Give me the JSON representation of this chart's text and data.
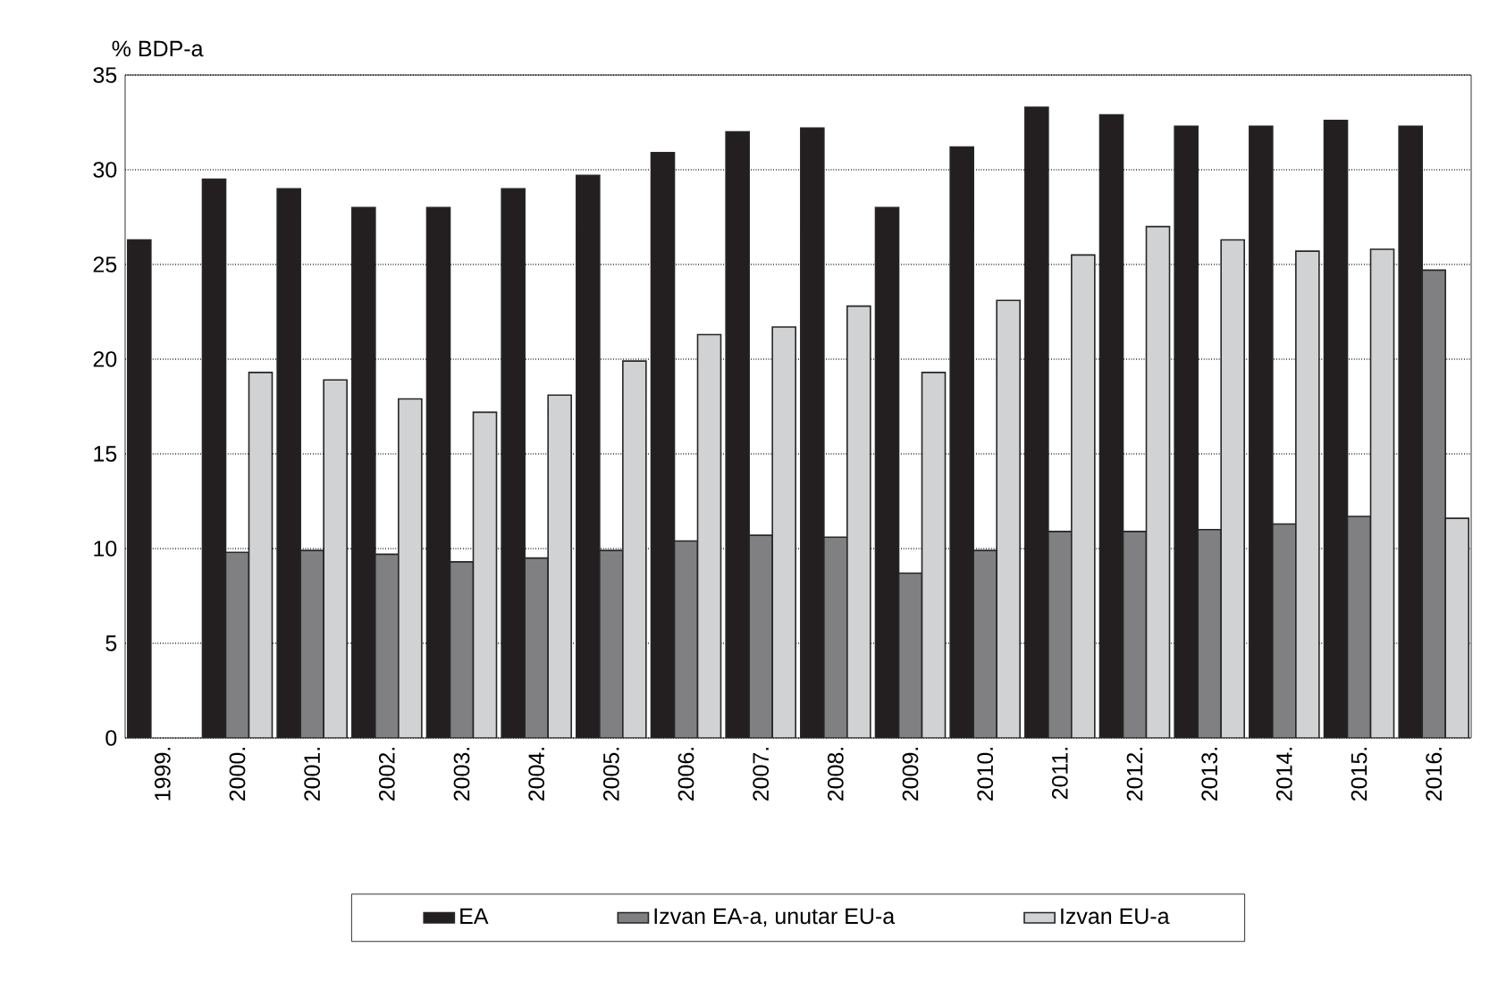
{
  "chart_data": {
    "type": "bar",
    "ylabel": "% BDP-a",
    "categories": [
      "1999.",
      "2000.",
      "2001.",
      "2002.",
      "2003.",
      "2004.",
      "2005.",
      "2006.",
      "2007.",
      "2008.",
      "2009.",
      "2010.",
      "2011.",
      "2012.",
      "2013.",
      "2014.",
      "2015.",
      "2016."
    ],
    "series": [
      {
        "name": "EA",
        "color": "#231f20",
        "values": [
          26.3,
          29.5,
          29.0,
          28.0,
          28.0,
          29.0,
          29.7,
          30.9,
          32.0,
          32.2,
          28.0,
          31.2,
          33.3,
          32.9,
          32.3,
          32.3,
          32.6,
          32.3
        ]
      },
      {
        "name": "Izvan EA-a, unutar EU-a",
        "color": "#808083",
        "values": [
          null,
          9.8,
          9.9,
          9.7,
          9.3,
          9.5,
          9.9,
          10.4,
          10.7,
          10.6,
          8.7,
          9.9,
          10.9,
          10.9,
          11.0,
          11.3,
          11.7,
          24.7
        ]
      },
      {
        "name": "Izvan EU-a",
        "color": "#d1d2d4",
        "values": [
          null,
          19.3,
          18.9,
          17.9,
          17.2,
          18.1,
          19.9,
          21.3,
          21.7,
          22.8,
          19.3,
          23.1,
          25.5,
          27.0,
          26.3,
          25.7,
          25.8,
          11.6
        ]
      }
    ],
    "ylim": [
      0,
      35
    ],
    "yticks": [
      0,
      5,
      10,
      15,
      20,
      25,
      30,
      35
    ],
    "grid": "y",
    "legend": "bottom"
  }
}
